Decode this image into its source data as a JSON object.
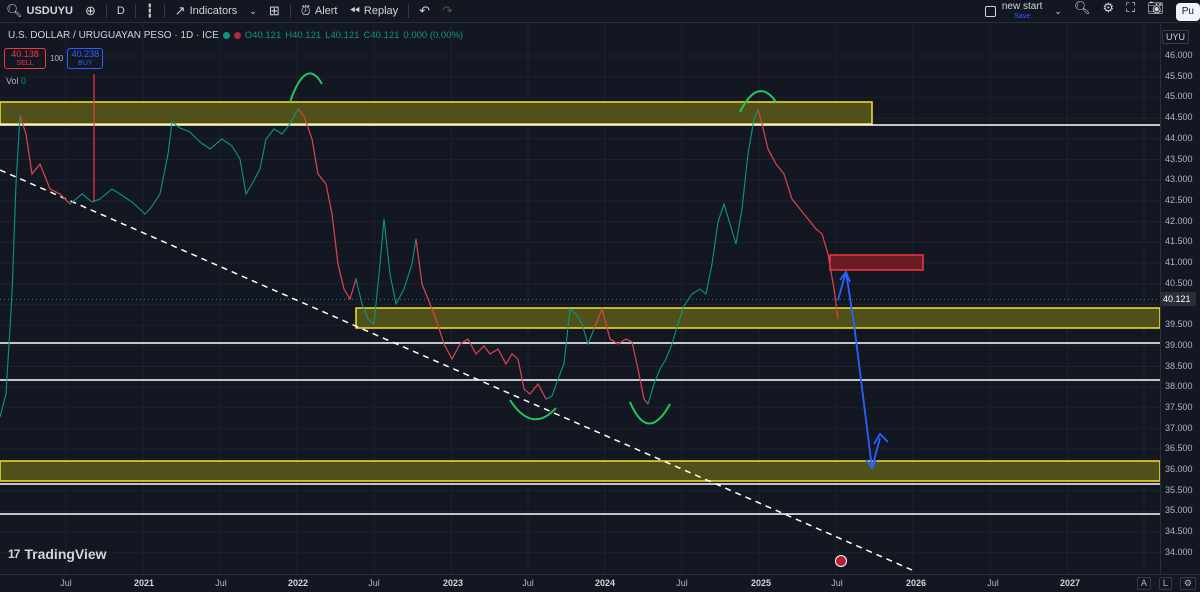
{
  "toolbar": {
    "symbol": "USDUYU",
    "interval": "D",
    "indicators_label": "Indicators",
    "alert_label": "Alert",
    "replay_label": "Replay",
    "layout_name": "new start",
    "save_label": "Save",
    "publish_label": "Pu"
  },
  "legend": {
    "title": "U.S. DOLLAR / URUGUAYAN PESO · 1D · ICE",
    "open": "O40.121",
    "high": "H40.121",
    "low": "L40.121",
    "close": "C40.121",
    "change": "0.000 (0.00%)"
  },
  "trade": {
    "sell_price": "40.138",
    "sell_label": "SELL",
    "spread": "100",
    "buy_price": "40.238",
    "buy_label": "BUY"
  },
  "volume": {
    "label": "Vol",
    "value": "0"
  },
  "price_axis": {
    "currency": "UYU",
    "current_price": "40.121",
    "ticks": [
      "46.000",
      "45.500",
      "45.000",
      "44.500",
      "44.000",
      "43.500",
      "43.000",
      "42.500",
      "42.000",
      "41.500",
      "41.000",
      "40.500",
      "40.000",
      "39.500",
      "39.000",
      "38.500",
      "38.000",
      "37.500",
      "37.000",
      "36.500",
      "36.000",
      "35.500",
      "35.000",
      "34.500",
      "34.000"
    ]
  },
  "time_axis": {
    "labels": [
      {
        "text": "Jul",
        "year": false
      },
      {
        "text": "2021",
        "year": true
      },
      {
        "text": "Jul",
        "year": false
      },
      {
        "text": "2022",
        "year": true
      },
      {
        "text": "Jul",
        "year": false
      },
      {
        "text": "2023",
        "year": true
      },
      {
        "text": "Jul",
        "year": false
      },
      {
        "text": "2024",
        "year": true
      },
      {
        "text": "Jul",
        "year": false
      },
      {
        "text": "2025",
        "year": true
      },
      {
        "text": "Jul",
        "year": false
      },
      {
        "text": "2026",
        "year": true
      },
      {
        "text": "Jul",
        "year": false
      },
      {
        "text": "2027",
        "year": true
      }
    ],
    "ctrl_auto": "A",
    "ctrl_log": "L"
  },
  "watermark": "TradingView",
  "colors": {
    "up": "#089981",
    "down": "#f23645",
    "zone_fill": "#5c5a1a",
    "zone_border": "#f5e32a",
    "arrow": "#2962ff",
    "arc": "#22c55e"
  }
}
